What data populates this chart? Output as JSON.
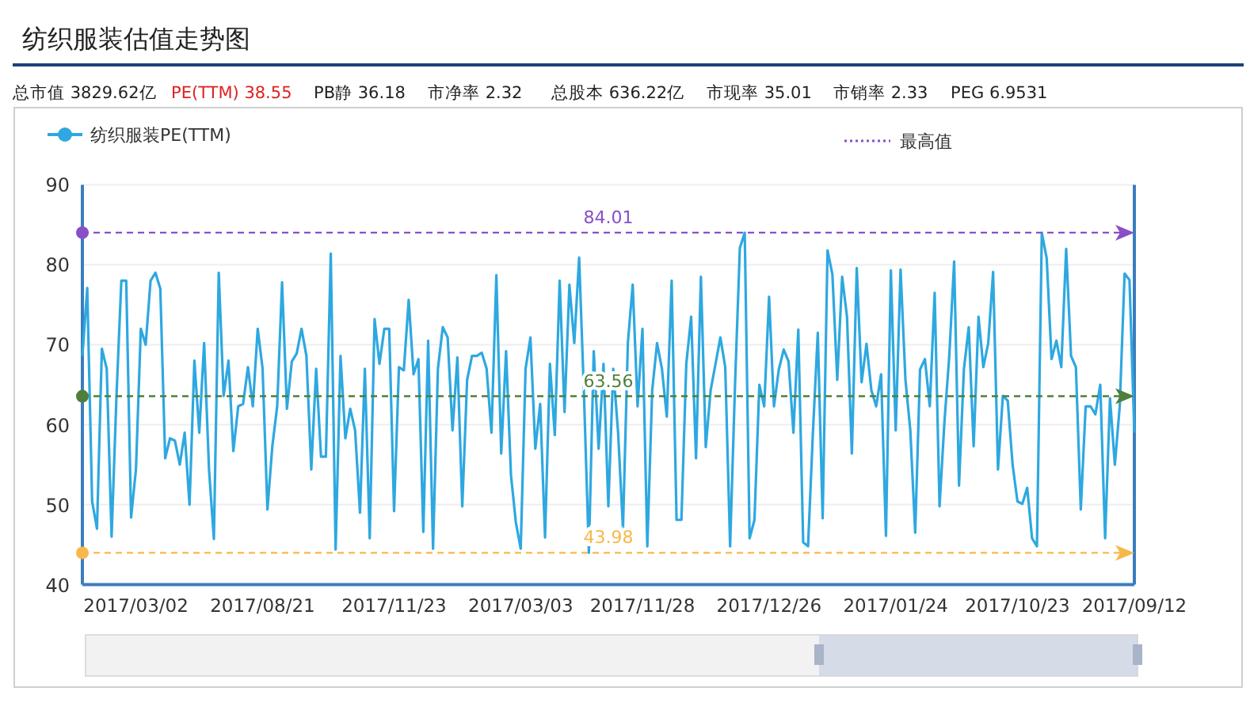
{
  "chart_data": {
    "type": "line",
    "title": "纺织服装估值走势图",
    "annotations": [
      "总市值 3829.62亿",
      "PE(TTM) 38.55",
      "PB静 36.18",
      "市净率 2.32",
      "总股本 636.22亿",
      "市现率 35.01",
      "市销率 2.33",
      "PEG 6.9531",
      "最高值"
    ],
    "categories": [
      null,
      null,
      null,
      null,
      null,
      null,
      null,
      null,
      null,
      null,
      null,
      "2017/03/02",
      null,
      null,
      null,
      null,
      null,
      null,
      null,
      null,
      null,
      null,
      null,
      null,
      null,
      null,
      null,
      null,
      null,
      null,
      null,
      null,
      null,
      null,
      null,
      null,
      null,
      "2017/08/21",
      null,
      null,
      null,
      null,
      null,
      null,
      null,
      null,
      null,
      null,
      null,
      null,
      null,
      null,
      null,
      null,
      null,
      null,
      null,
      null,
      null,
      null,
      null,
      null,
      null,
      null,
      "2017/11/23",
      null,
      null,
      null,
      null,
      null,
      null,
      null,
      null,
      null,
      null,
      null,
      null,
      null,
      null,
      null,
      null,
      null,
      null,
      null,
      null,
      null,
      null,
      null,
      null,
      null,
      "2017/03/03",
      null,
      null,
      null,
      null,
      null,
      null,
      null,
      null,
      null,
      null,
      null,
      null,
      null,
      null,
      null,
      null,
      null,
      null,
      null,
      null,
      null,
      null,
      null,
      null,
      "2017/11/28",
      null,
      null,
      null,
      null,
      null,
      null,
      null,
      null,
      null,
      null,
      null,
      null,
      null,
      null,
      null,
      null,
      null,
      null,
      null,
      null,
      null,
      null,
      null,
      null,
      null,
      "2017/12/26",
      null,
      null,
      null,
      null,
      null,
      null,
      null,
      null,
      null,
      null,
      null,
      null,
      null,
      null,
      null,
      null,
      null,
      null,
      null,
      null,
      null,
      null,
      null,
      null,
      null,
      "2017/01/24",
      null,
      null,
      null,
      null,
      null,
      null,
      null,
      null,
      null,
      null,
      null,
      null,
      null,
      null,
      null,
      null,
      null,
      null,
      null,
      null,
      null,
      null,
      null,
      null,
      "2017/10/23",
      null,
      null,
      null,
      null,
      null,
      null,
      null,
      null,
      null,
      null,
      null,
      null,
      null,
      null,
      null,
      null,
      null,
      null,
      null,
      null,
      null,
      null,
      null,
      "2017/09/12"
    ],
    "series": [
      {
        "name": "纺织服装PE(TTM)",
        "color": "#2ea8e0",
        "values": [
          68.6,
          77.1,
          50.4,
          47,
          69.5,
          67,
          46,
          63.6,
          78,
          78,
          48.4,
          54.4,
          72,
          70,
          78,
          79,
          77,
          55.8,
          58.3,
          58,
          55,
          59,
          50,
          68,
          59,
          70.2,
          54.4,
          45.7,
          79,
          63.6,
          68,
          56.7,
          62.3,
          62.6,
          67.2,
          62.3,
          72,
          67,
          49.4,
          57.3,
          62.3,
          77.8,
          62,
          67.9,
          68.9,
          72,
          68.6,
          54.4,
          67,
          56,
          56,
          81.4,
          44.4,
          68.6,
          58.3,
          62,
          59.3,
          49,
          67,
          45.8,
          73.2,
          67.6,
          72,
          72,
          49.2,
          67.2,
          66.8,
          75.6,
          66.3,
          68.2,
          46.6,
          70.5,
          44.5,
          67,
          72.2,
          70.9,
          59.3,
          68.4,
          49.8,
          65.6,
          68.6,
          68.6,
          69,
          67,
          59,
          78.7,
          56.4,
          69.2,
          53.7,
          47.8,
          44.5,
          67,
          70.9,
          57,
          62.6,
          45.9,
          67.6,
          58.7,
          78,
          61.6,
          77.5,
          70.2,
          80.9,
          63.6,
          44,
          69.2,
          57,
          67.6,
          49.8,
          67,
          59,
          47,
          70.2,
          77.5,
          62.3,
          72,
          44.8,
          64.3,
          70.2,
          67,
          61,
          78,
          48.1,
          48.1,
          67.6,
          73.5,
          55.8,
          78.5,
          57.2,
          64.3,
          67.6,
          70.9,
          67.2,
          44.8,
          64.9,
          82.1,
          84,
          45.8,
          48.1,
          65,
          62.3,
          76,
          62.3,
          66.9,
          69.4,
          67.9,
          59,
          71.9,
          45.3,
          44.8,
          59,
          71.5,
          48.3,
          81.8,
          78.8,
          65.6,
          78.5,
          73.5,
          56.4,
          79.6,
          65.3,
          70.1,
          64.3,
          62.3,
          66.3,
          46.1,
          79.3,
          59.3,
          79.4,
          65.6,
          59.3,
          46.5,
          66.9,
          68.2,
          62.3,
          76.5,
          49.8,
          60.3,
          68.6,
          80.4,
          52.4,
          66.9,
          72.2,
          57.3,
          73.5,
          67.2,
          70.2,
          79.1,
          54.4,
          63.6,
          63,
          55,
          50.4,
          50.1,
          52.1,
          45.8,
          44.8,
          84,
          80.8,
          68.2,
          70.5,
          67.2,
          82,
          68.6,
          67.2,
          49.4,
          62.3,
          62.3,
          61.3,
          65,
          45.8,
          63.3,
          55,
          62.3,
          78.9,
          78.1,
          59
        ]
      }
    ],
    "ylim": [
      40,
      90
    ],
    "yticks": [
      40,
      50,
      60,
      70,
      80,
      90
    ],
    "grid": "y",
    "legend": "top left",
    "marker": "none",
    "line_style": "solid",
    "ref_lines": [
      {
        "axis": "y",
        "value": 84.01,
        "label": "84.01",
        "color": "#8a4fc8",
        "line_style": "dashed"
      },
      {
        "axis": "y",
        "value": 63.56,
        "label": "63.56",
        "color": "#4f7f3a",
        "line_style": "dashed"
      },
      {
        "axis": "y",
        "value": 43.98,
        "label": "43.98",
        "color": "#f7b84b",
        "line_style": "dashed"
      }
    ]
  }
}
